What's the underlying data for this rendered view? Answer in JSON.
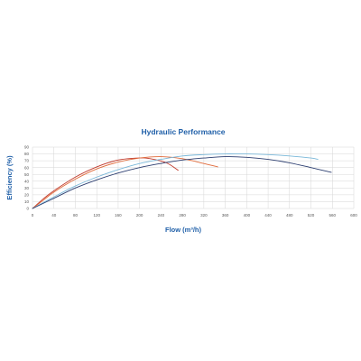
{
  "chart_data": {
    "type": "line",
    "title": "Hydraulic Performance",
    "xlabel": "Flow (m³/h)",
    "ylabel": "Efficiency (%)",
    "xlim": [
      0,
      600
    ],
    "ylim": [
      0,
      90
    ],
    "x_ticks": [
      0,
      40,
      80,
      120,
      160,
      200,
      240,
      280,
      320,
      360,
      400,
      440,
      480,
      520,
      560,
      600
    ],
    "y_ticks": [
      0,
      10,
      20,
      30,
      40,
      50,
      60,
      70,
      80,
      90
    ],
    "grid": true,
    "legend": "none",
    "colors": {
      "title": "#1f5fa8",
      "axis_label": "#1f5fa8",
      "tick_label": "#555555",
      "grid": "#d6d6d6"
    },
    "series": [
      {
        "color": "#c0392b",
        "points": [
          [
            0,
            0
          ],
          [
            20,
            14
          ],
          [
            40,
            26
          ],
          [
            80,
            46
          ],
          [
            120,
            61
          ],
          [
            160,
            71
          ],
          [
            200,
            74
          ],
          [
            220,
            73
          ],
          [
            250,
            67
          ],
          [
            272,
            56
          ]
        ]
      },
      {
        "color": "#e06a3a",
        "points": [
          [
            0,
            0
          ],
          [
            20,
            12
          ],
          [
            40,
            24
          ],
          [
            80,
            43
          ],
          [
            120,
            58
          ],
          [
            160,
            68
          ],
          [
            200,
            74
          ],
          [
            240,
            76
          ],
          [
            280,
            73
          ],
          [
            320,
            66
          ],
          [
            346,
            61
          ]
        ]
      },
      {
        "color": "#7ab8d9",
        "points": [
          [
            0,
            0
          ],
          [
            40,
            17
          ],
          [
            80,
            33
          ],
          [
            120,
            46
          ],
          [
            160,
            57
          ],
          [
            200,
            66
          ],
          [
            240,
            72
          ],
          [
            280,
            77
          ],
          [
            320,
            79
          ],
          [
            360,
            80
          ],
          [
            400,
            80
          ],
          [
            440,
            79
          ],
          [
            480,
            77
          ],
          [
            520,
            74
          ],
          [
            533,
            72
          ]
        ]
      },
      {
        "color": "#2c3e70",
        "points": [
          [
            0,
            0
          ],
          [
            40,
            15
          ],
          [
            80,
            30
          ],
          [
            120,
            42
          ],
          [
            160,
            52
          ],
          [
            200,
            60
          ],
          [
            240,
            66
          ],
          [
            280,
            71
          ],
          [
            320,
            74
          ],
          [
            360,
            76
          ],
          [
            400,
            75
          ],
          [
            440,
            72
          ],
          [
            480,
            67
          ],
          [
            520,
            60
          ],
          [
            558,
            53
          ]
        ]
      }
    ]
  }
}
